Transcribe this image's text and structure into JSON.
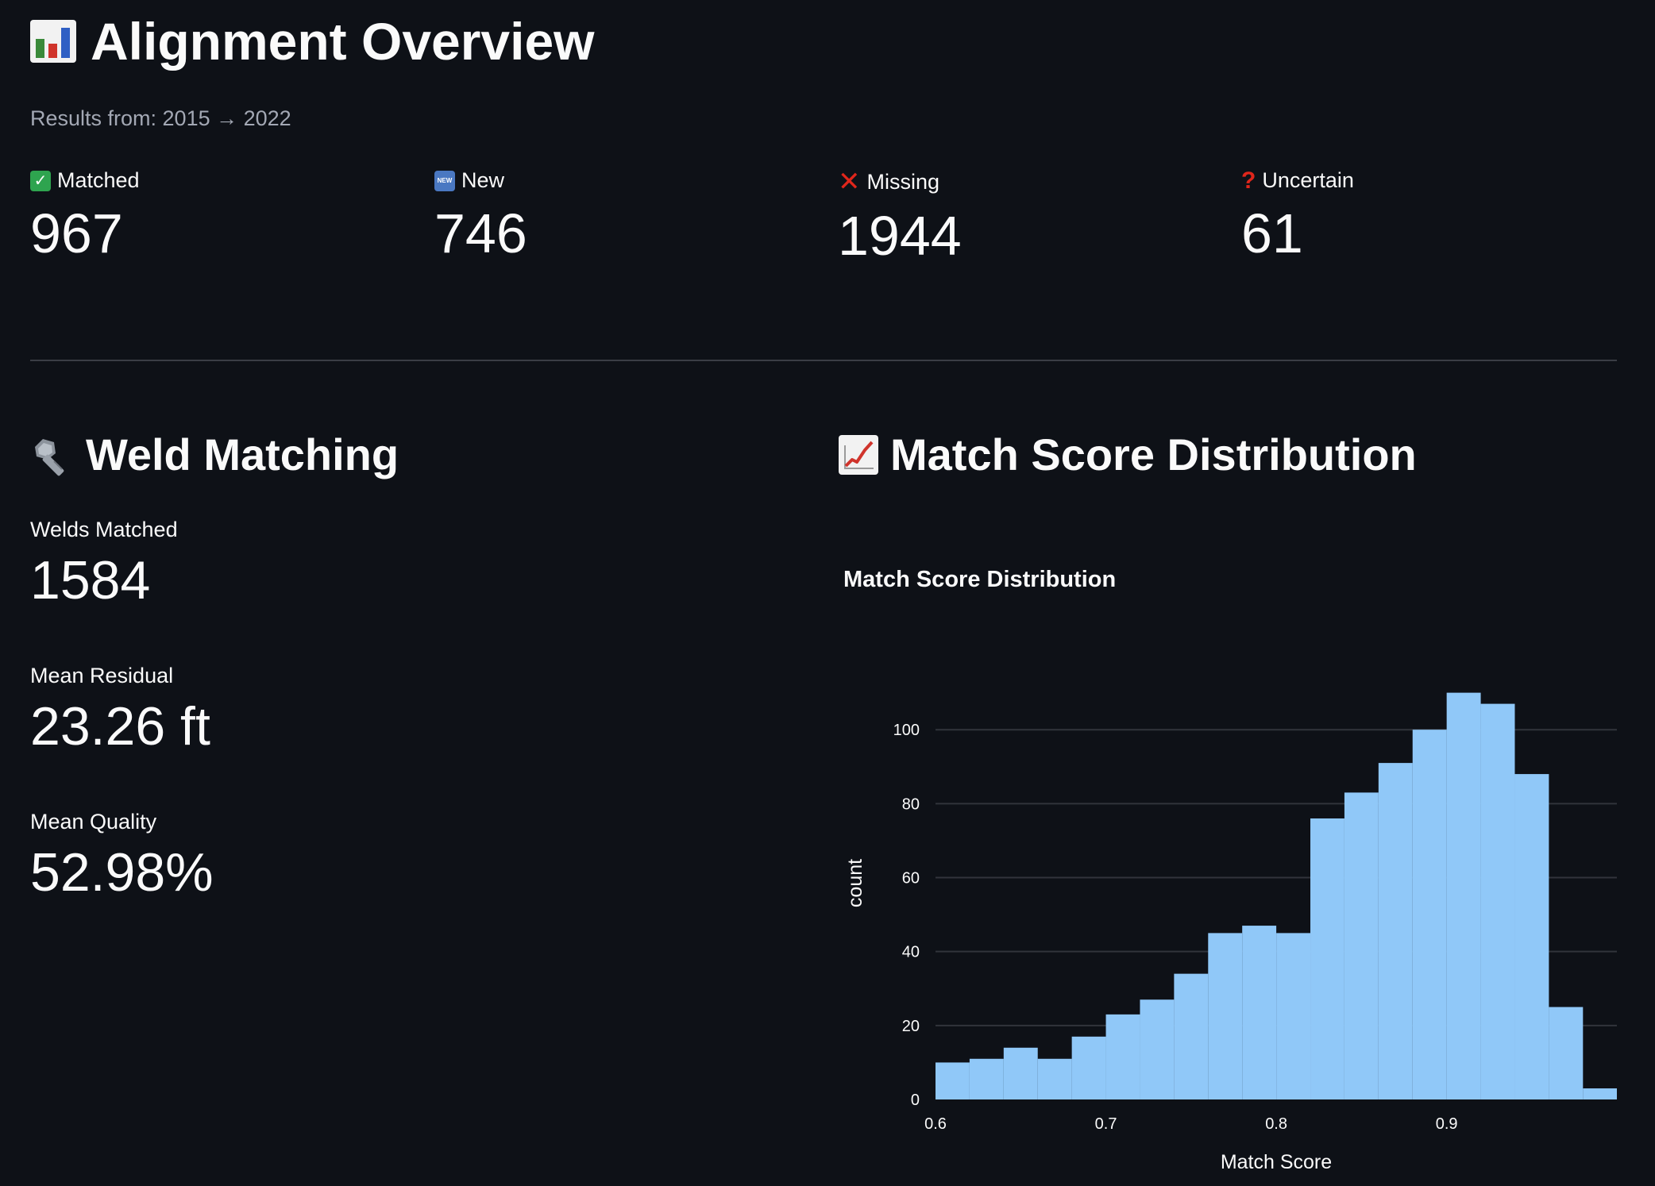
{
  "header": {
    "title": "Alignment Overview",
    "icon": "bar-chart-icon",
    "subtitle": "Results from: 2015 → 2022"
  },
  "metrics": [
    {
      "label": "Matched",
      "value": "967",
      "icon": "check-icon"
    },
    {
      "label": "New",
      "value": "746",
      "icon": "new-icon"
    },
    {
      "label": "Missing",
      "value": "1944",
      "icon": "cross-icon"
    },
    {
      "label": "Uncertain",
      "value": "61",
      "icon": "question-icon"
    }
  ],
  "weld_section": {
    "title": "Weld Matching",
    "icon": "nut-and-bolt-icon",
    "stats": [
      {
        "label": "Welds Matched",
        "value": "1584"
      },
      {
        "label": "Mean Residual",
        "value": "23.26 ft"
      },
      {
        "label": "Mean Quality",
        "value": "52.98%"
      }
    ]
  },
  "distribution_section": {
    "title": "Match Score Distribution",
    "icon": "chart-increasing-icon"
  },
  "chart_data": {
    "type": "bar",
    "title": "Match Score Distribution",
    "xlabel": "Match Score",
    "ylabel": "count",
    "bar_color": "#90c8f8",
    "bin_width": 0.02,
    "x_bin_starts": [
      0.6,
      0.62,
      0.64,
      0.66,
      0.68,
      0.7,
      0.72,
      0.74,
      0.76,
      0.78,
      0.8,
      0.82,
      0.84,
      0.86,
      0.88,
      0.9,
      0.92,
      0.94,
      0.96,
      0.98
    ],
    "values": [
      10,
      11,
      14,
      11,
      17,
      23,
      27,
      34,
      45,
      47,
      45,
      76,
      83,
      91,
      100,
      110,
      107,
      88,
      25,
      3
    ],
    "xlim": [
      0.6,
      0.9999
    ],
    "ylim": [
      0,
      117
    ],
    "xticks": [
      "0.6",
      "0.7",
      "0.8",
      "0.9"
    ],
    "yticks": [
      "0",
      "20",
      "40",
      "60",
      "80",
      "100"
    ],
    "grid": true
  }
}
